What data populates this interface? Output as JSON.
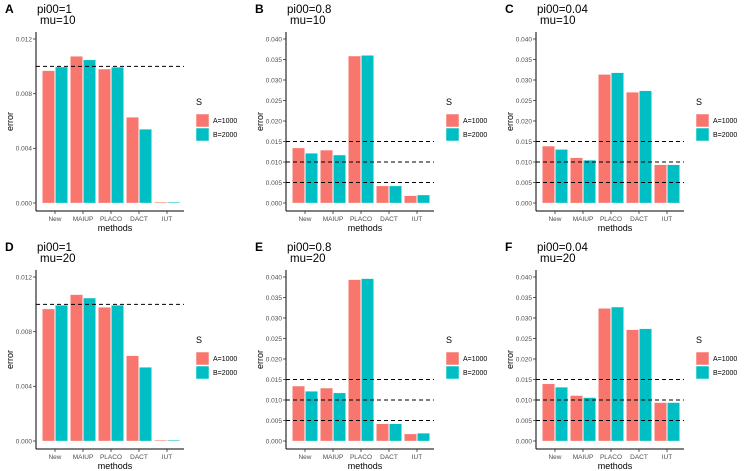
{
  "chart_data": [
    {
      "type": "bar",
      "panel": "A",
      "title": "pi00=1",
      "subtitle": "mu=10",
      "xlabel": "methods",
      "ylabel": "error",
      "categories": [
        "New",
        "MAIUP",
        "PLACO",
        "DACT",
        "IUT"
      ],
      "series": [
        {
          "name": "A=1000",
          "values": [
            0.00968,
            0.01073,
            0.0098,
            0.00627,
            5e-05
          ]
        },
        {
          "name": "B=2000",
          "values": [
            0.00995,
            0.01047,
            0.00994,
            0.0054,
            5e-05
          ]
        }
      ],
      "ylim": [
        0,
        0.0125
      ],
      "yticks": [
        0.0,
        0.004,
        0.008,
        0.012
      ],
      "ytick_labels": [
        "0.000",
        "0.004",
        "0.008",
        "0.012"
      ],
      "reference_lines": [
        0.01
      ],
      "legend": {
        "title": "S",
        "position": "right"
      },
      "grid": false
    },
    {
      "type": "bar",
      "panel": "B",
      "title": "pi00=0.8",
      "subtitle": "mu=10",
      "xlabel": "methods",
      "ylabel": "error",
      "categories": [
        "New",
        "MAIUP",
        "PLACO",
        "DACT",
        "IUT"
      ],
      "series": [
        {
          "name": "A=1000",
          "values": [
            0.01342,
            0.0129,
            0.03584,
            0.00416,
            0.00178
          ]
        },
        {
          "name": "B=2000",
          "values": [
            0.01212,
            0.0117,
            0.036,
            0.00416,
            0.00195
          ]
        }
      ],
      "ylim": [
        0,
        0.0415
      ],
      "yticks": [
        0.0,
        0.005,
        0.01,
        0.015,
        0.02,
        0.025,
        0.03,
        0.035,
        0.04
      ],
      "ytick_labels": [
        "0.000",
        "0.005",
        "0.010",
        "0.015",
        "0.020",
        "0.025",
        "0.030",
        "0.035",
        "0.040"
      ],
      "reference_lines": [
        0.005,
        0.01,
        0.015
      ],
      "legend": {
        "title": "S",
        "position": "right"
      },
      "grid": false
    },
    {
      "type": "bar",
      "panel": "C",
      "title": "pi00=0.04",
      "subtitle": "mu=10",
      "xlabel": "methods",
      "ylabel": "error",
      "categories": [
        "New",
        "MAIUP",
        "PLACO",
        "DACT",
        "IUT"
      ],
      "series": [
        {
          "name": "A=1000",
          "values": [
            0.01388,
            0.01102,
            0.03135,
            0.02702,
            0.00931
          ]
        },
        {
          "name": "B=2000",
          "values": [
            0.01306,
            0.01045,
            0.03176,
            0.02735,
            0.00931
          ]
        }
      ],
      "ylim": [
        0,
        0.0415
      ],
      "yticks": [
        0.0,
        0.005,
        0.01,
        0.015,
        0.02,
        0.025,
        0.03,
        0.035,
        0.04
      ],
      "ytick_labels": [
        "0.000",
        "0.005",
        "0.010",
        "0.015",
        "0.020",
        "0.025",
        "0.030",
        "0.035",
        "0.040"
      ],
      "reference_lines": [
        0.005,
        0.01,
        0.015
      ],
      "legend": {
        "title": "S",
        "position": "right"
      },
      "grid": false
    },
    {
      "type": "bar",
      "panel": "D",
      "title": "pi00=1",
      "subtitle": "mu=20",
      "xlabel": "methods",
      "ylabel": "error",
      "categories": [
        "New",
        "MAIUP",
        "PLACO",
        "DACT",
        "IUT"
      ],
      "series": [
        {
          "name": "A=1000",
          "values": [
            0.00966,
            0.01071,
            0.00978,
            0.00624,
            5e-05
          ]
        },
        {
          "name": "B=2000",
          "values": [
            0.00993,
            0.01046,
            0.00993,
            0.00539,
            5e-05
          ]
        }
      ],
      "ylim": [
        0,
        0.0125
      ],
      "yticks": [
        0.0,
        0.004,
        0.008,
        0.012
      ],
      "ytick_labels": [
        "0.000",
        "0.004",
        "0.008",
        "0.012"
      ],
      "reference_lines": [
        0.01
      ],
      "legend": {
        "title": "S",
        "position": "right"
      },
      "grid": false
    },
    {
      "type": "bar",
      "panel": "E",
      "title": "pi00=0.8",
      "subtitle": "mu=20",
      "xlabel": "methods",
      "ylabel": "error",
      "categories": [
        "New",
        "MAIUP",
        "PLACO",
        "DACT",
        "IUT"
      ],
      "series": [
        {
          "name": "A=1000",
          "values": [
            0.0134,
            0.01291,
            0.03935,
            0.00418,
            0.00172
          ]
        },
        {
          "name": "B=2000",
          "values": [
            0.01213,
            0.01172,
            0.0396,
            0.00418,
            0.00189
          ]
        }
      ],
      "ylim": [
        0,
        0.0415
      ],
      "yticks": [
        0.0,
        0.005,
        0.01,
        0.015,
        0.02,
        0.025,
        0.03,
        0.035,
        0.04
      ],
      "ytick_labels": [
        "0.000",
        "0.005",
        "0.010",
        "0.015",
        "0.020",
        "0.025",
        "0.030",
        "0.035",
        "0.040"
      ],
      "reference_lines": [
        0.005,
        0.01,
        0.015
      ],
      "legend": {
        "title": "S",
        "position": "right"
      },
      "grid": false
    },
    {
      "type": "bar",
      "panel": "F",
      "title": "pi00=0.04",
      "subtitle": "mu=20",
      "xlabel": "methods",
      "ylabel": "error",
      "categories": [
        "New",
        "MAIUP",
        "PLACO",
        "DACT",
        "IUT"
      ],
      "series": [
        {
          "name": "A=1000",
          "values": [
            0.01393,
            0.01108,
            0.03234,
            0.02713,
            0.00937
          ]
        },
        {
          "name": "B=2000",
          "values": [
            0.01312,
            0.01059,
            0.03267,
            0.02737,
            0.00937
          ]
        }
      ],
      "ylim": [
        0,
        0.0415
      ],
      "yticks": [
        0.0,
        0.005,
        0.01,
        0.015,
        0.02,
        0.025,
        0.03,
        0.035,
        0.04
      ],
      "ytick_labels": [
        "0.000",
        "0.005",
        "0.010",
        "0.015",
        "0.020",
        "0.025",
        "0.030",
        "0.035",
        "0.040"
      ],
      "reference_lines": [
        0.005,
        0.01,
        0.015
      ],
      "legend": {
        "title": "S",
        "position": "right"
      },
      "grid": false
    }
  ],
  "colors": {
    "series": [
      "#F8766D",
      "#00BFC4"
    ],
    "axis": "#000000",
    "tick_label": "#4d4d4d",
    "reference_line": "#000000"
  }
}
